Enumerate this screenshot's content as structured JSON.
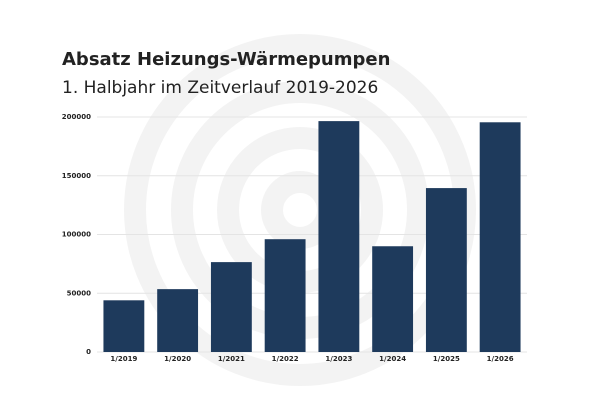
{
  "chart_data": {
    "type": "bar",
    "title": "Absatz Heizungs-Wärmepumpen",
    "subtitle": "1. Halbjahr im Zeitverlauf 2019-2026",
    "categories": [
      "1/2019",
      "1/2020",
      "1/2021",
      "1/2022",
      "1/2023",
      "1/2024",
      "1/2025",
      "1/2026"
    ],
    "values": [
      44000,
      53500,
      76500,
      96000,
      196500,
      90000,
      139500,
      195500
    ],
    "color": "#1e3a5c",
    "ylim": [
      0,
      200000
    ],
    "yticks": [
      0,
      50000,
      100000,
      150000,
      200000
    ],
    "grid": true
  }
}
